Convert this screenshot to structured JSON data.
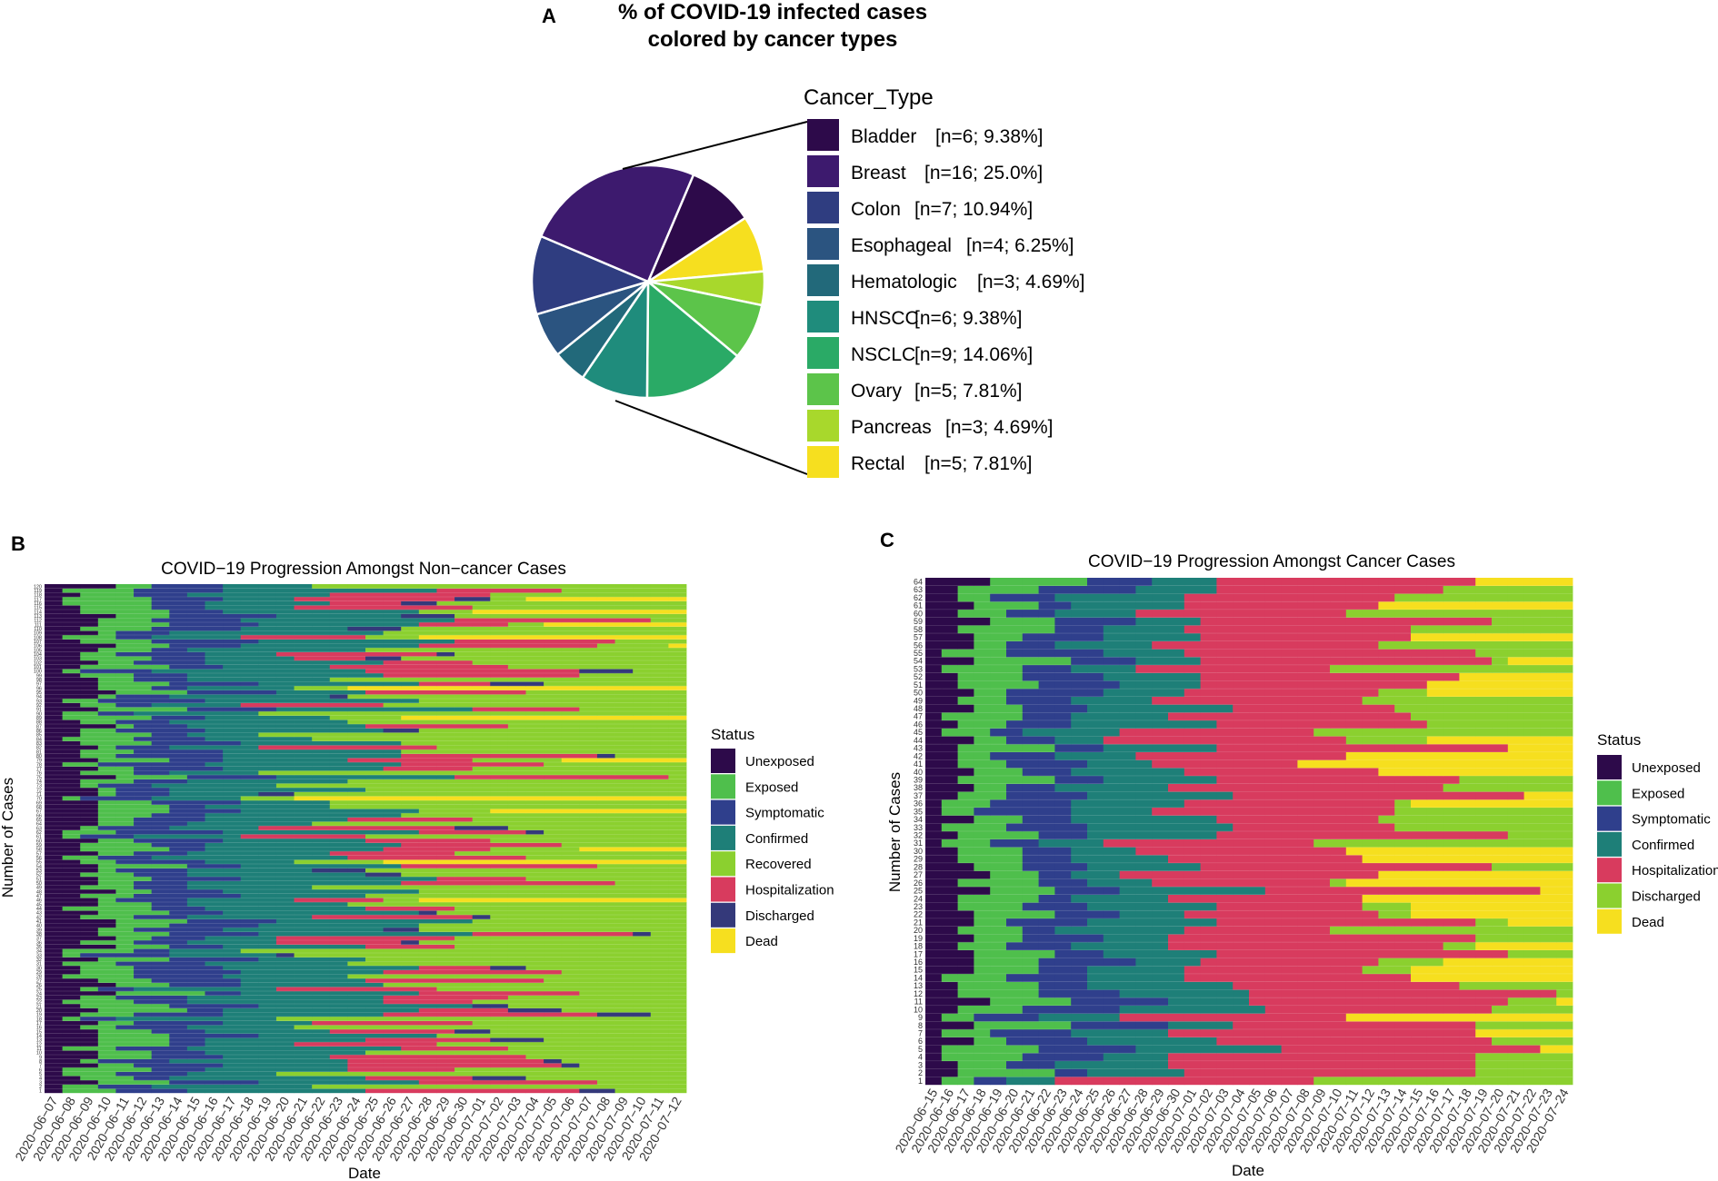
{
  "colors": {
    "Unexposed": "#2d0a4a",
    "Exposed": "#4fbf4c",
    "Symptomatic": "#2f3f8c",
    "Confirmed": "#1e7f78",
    "Recovered": "#8bd02f",
    "Hospitalization": "#d83b5e",
    "Discharged": "#8bd02f",
    "DischargedB": "#34397a",
    "Dead": "#f6df1f"
  },
  "chart_data": [
    {
      "panel": "A",
      "type": "pie",
      "title": "% of COVID-19 infected cases colored by cancer types",
      "legend_title": "Cancer_Type",
      "slices": [
        {
          "name": "Bladder",
          "n": 6,
          "label": "[n=6; 9.38%]",
          "color": "#2d0a4a"
        },
        {
          "name": "Breast",
          "n": 16,
          "label": "[n=16; 25.0%]",
          "color": "#3d1a6e"
        },
        {
          "name": "Colon",
          "n": 7,
          "label": "[n=7; 10.94%]",
          "color": "#2f3d80"
        },
        {
          "name": "Esophageal",
          "n": 4,
          "label": "[n=4; 6.25%]",
          "color": "#2b5480"
        },
        {
          "name": "Hematologic",
          "n": 3,
          "label": "[n=3; 4.69%]",
          "color": "#22697a"
        },
        {
          "name": "HNSCC",
          "n": 6,
          "label": "[n=6; 9.38%]",
          "color": "#1f8c7c"
        },
        {
          "name": "NSCLC",
          "n": 9,
          "label": "[n=9; 14.06%]",
          "color": "#2aaa66"
        },
        {
          "name": "Ovary",
          "n": 5,
          "label": "[n=5; 7.81%]",
          "color": "#5cc44a"
        },
        {
          "name": "Pancreas",
          "n": 3,
          "label": "[n=3; 4.69%]",
          "color": "#a8d82c"
        },
        {
          "name": "Rectal",
          "n": 5,
          "label": "[n=5; 7.81%]",
          "color": "#f6df1f"
        }
      ]
    },
    {
      "panel": "B",
      "type": "heatmap",
      "title": "COVID−19 Progression Amongst Non−cancer Cases",
      "xlabel": "Date",
      "ylabel": "Number of Cases",
      "n_cases": 120,
      "dates": [
        "2020−06−07",
        "2020−06−08",
        "2020−06−09",
        "2020−06−10",
        "2020−06−11",
        "2020−06−12",
        "2020−06−13",
        "2020−06−14",
        "2020−06−15",
        "2020−06−16",
        "2020−06−17",
        "2020−06−18",
        "2020−06−19",
        "2020−06−20",
        "2020−06−21",
        "2020−06−22",
        "2020−06−23",
        "2020−06−24",
        "2020−06−25",
        "2020−06−26",
        "2020−06−27",
        "2020−06−28",
        "2020−06−29",
        "2020−06−30",
        "2020−07−01",
        "2020−07−02",
        "2020−07−03",
        "2020−07−04",
        "2020−07−05",
        "2020−07−06",
        "2020−07−07",
        "2020−07−08",
        "2020−07−09",
        "2020−07−10",
        "2020−07−11",
        "2020−07−12"
      ],
      "legend_title": "Status",
      "legend": [
        "Unexposed",
        "Exposed",
        "Symptomatic",
        "Confirmed",
        "Recovered",
        "Hospitalization",
        "Discharged",
        "Dead"
      ],
      "legend_keys": [
        "Unexposed",
        "Exposed",
        "Symptomatic",
        "Confirmed",
        "Recovered",
        "Hospitalization",
        "DischargedB",
        "Dead"
      ],
      "typical_stage_days": {
        "Unexposed": 2,
        "Exposed": 3,
        "Symptomatic": 4,
        "Confirmed": 8,
        "Hospitalization": 8
      }
    },
    {
      "panel": "C",
      "type": "heatmap",
      "title": "COVID−19 Progression Amongst Cancer Cases",
      "xlabel": "Date",
      "ylabel": "Number of Cases",
      "n_cases": 64,
      "dates": [
        "2020−06−15",
        "2020−06−16",
        "2020−06−17",
        "2020−06−18",
        "2020−06−19",
        "2020−06−20",
        "2020−06−21",
        "2020−06−22",
        "2020−06−23",
        "2020−06−24",
        "2020−06−25",
        "2020−06−26",
        "2020−06−27",
        "2020−06−28",
        "2020−06−29",
        "2020−06−30",
        "2020−07−01",
        "2020−07−02",
        "2020−07−03",
        "2020−07−04",
        "2020−07−05",
        "2020−07−06",
        "2020−07−07",
        "2020−07−08",
        "2020−07−09",
        "2020−07−10",
        "2020−07−11",
        "2020−07−12",
        "2020−07−13",
        "2020−07−14",
        "2020−07−15",
        "2020−07−16",
        "2020−07−17",
        "2020−07−18",
        "2020−07−19",
        "2020−07−20",
        "2020−07−21",
        "2020−07−22",
        "2020−07−23",
        "2020−07−24"
      ],
      "legend_title": "Status",
      "legend": [
        "Unexposed",
        "Exposed",
        "Symptomatic",
        "Confirmed",
        "Hospitalization",
        "Discharged",
        "Dead"
      ],
      "legend_keys": [
        "Unexposed",
        "Exposed",
        "Symptomatic",
        "Confirmed",
        "Hospitalization",
        "Discharged",
        "Dead"
      ],
      "typical_stage_days": {
        "Unexposed": 2,
        "Exposed": 4,
        "Symptomatic": 4,
        "Confirmed": 6,
        "Hospitalization": 14
      }
    }
  ],
  "panels": {
    "A": {
      "letter": "A",
      "title_line1": "% of COVID-19 infected cases",
      "title_line2": "colored by cancer types"
    },
    "B": {
      "letter": "B"
    },
    "C": {
      "letter": "C"
    }
  }
}
